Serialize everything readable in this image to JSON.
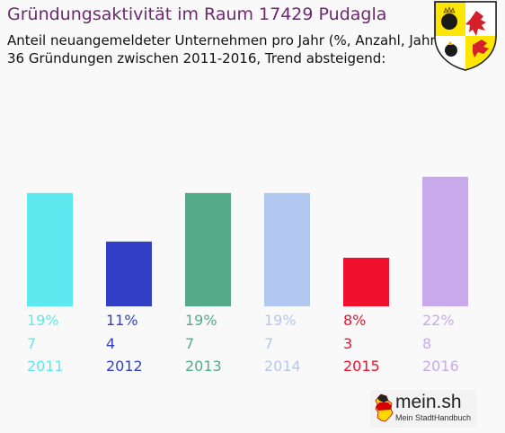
{
  "header": {
    "title": "Gründungsaktivität im Raum 17429 Pudagla",
    "subtitle_line1": "Anteil neuangemeldeter Unternehmen pro Jahr (%, Anzahl, Jahr)",
    "subtitle_line2": "36 Gründungen zwischen 2011-2016, Trend absteigend:"
  },
  "crest": {
    "icon": "mecklenburg-vorpommern-coat-of-arms",
    "colors": [
      "#ffe600",
      "#ffffff",
      "#1a1a1a",
      "#d4202a"
    ]
  },
  "chart_data": {
    "type": "bar",
    "categories": [
      "2011",
      "2012",
      "2013",
      "2014",
      "2015",
      "2016"
    ],
    "percent_labels": [
      "19%",
      "11%",
      "19%",
      "19%",
      "8%",
      "22%"
    ],
    "values": [
      7,
      4,
      7,
      7,
      3,
      8
    ],
    "colors": [
      "#5ee8ef",
      "#3240c8",
      "#55aa8c",
      "#b3c8f0",
      "#f0102e",
      "#c8aaec"
    ],
    "ylim": [
      0,
      8.6
    ],
    "grid": false,
    "legend": "none"
  },
  "footer": {
    "logo_text": "mein.sh",
    "logo_sub": "Mein StadtHandbuch",
    "logo_icon": "germany-map-icon"
  }
}
